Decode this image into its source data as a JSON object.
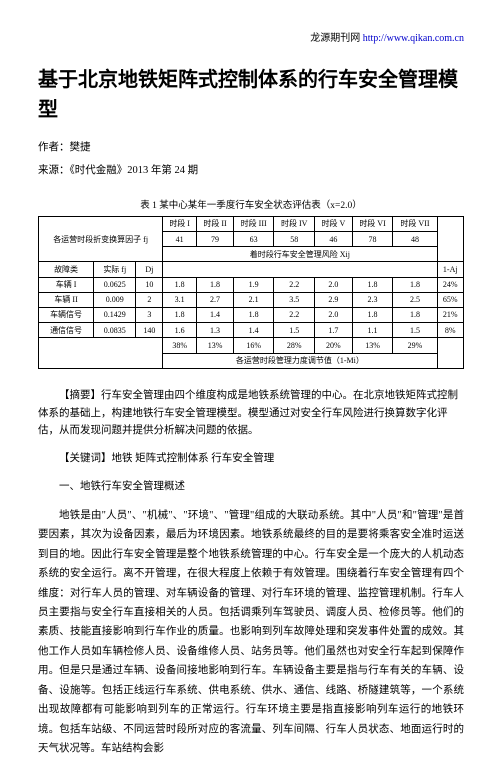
{
  "header": {
    "site_label": "龙源期刊网",
    "site_url_text": "http://www.qikan.com.cn"
  },
  "title": "基于北京地铁矩阵式控制体系的行车安全管理模型",
  "meta": {
    "author_prefix": "作者：",
    "author": "樊捷",
    "source_prefix": "来源：",
    "source": "《时代金融》2013 年第 24 期"
  },
  "table": {
    "caption": "表 1 某中心某年一季度行车安全状态评估表（x=2.0）",
    "top_header": "各运营时段折变换算因子 fj",
    "periods": [
      "时段 I",
      "时段 II",
      "时段 III",
      "时段 IV",
      "时段 V",
      "时段 VI",
      "时段 VII"
    ],
    "period_vals": [
      "41",
      "79",
      "63",
      "58",
      "46",
      "78",
      "48"
    ],
    "risk_header": "着时段行车安全管理风险 Xij",
    "last_col_header": "1-Aj",
    "cols": [
      "故障类",
      "实际 fj",
      "Dj"
    ],
    "rows": [
      {
        "label": "车辆 I",
        "f": "0.0625",
        "d": "10",
        "v": [
          "1.8",
          "1.8",
          "1.9",
          "2.2",
          "2.0",
          "1.8",
          "1.8"
        ],
        "last": "24%"
      },
      {
        "label": "车辆 II",
        "f": "0.009",
        "d": "2",
        "v": [
          "3.1",
          "2.7",
          "2.1",
          "3.5",
          "2.9",
          "2.3",
          "2.5"
        ],
        "last": "65%"
      },
      {
        "label": "车辆信号",
        "f": "0.1429",
        "d": "3",
        "v": [
          "1.8",
          "1.4",
          "1.8",
          "2.2",
          "2.0",
          "1.8",
          "1.8"
        ],
        "last": "21%"
      },
      {
        "label": "通信信号",
        "f": "0.0835",
        "d": "140",
        "v": [
          "1.6",
          "1.3",
          "1.4",
          "1.5",
          "1.7",
          "1.1",
          "1.5"
        ],
        "last": "8%"
      }
    ],
    "footer_row": [
      "38%",
      "13%",
      "16%",
      "28%",
      "20%",
      "13%",
      "29%"
    ],
    "footer_label": "各运营时段管理力度调节值（1-Mi）"
  },
  "abstract": {
    "label": "【摘要】",
    "text": "行车安全管理由四个维度构成是地铁系统管理的中心。在北京地铁矩阵式控制体系的基础上，构建地铁行车安全管理模型。模型通过对安全行车风险进行换算数字化评估，从而发现问题并提供分析解决问题的依据。"
  },
  "keywords": {
    "label": "【关键词】",
    "text": "地铁 矩阵式控制体系 行车安全管理"
  },
  "section": {
    "title": "一、地铁行车安全管理概述",
    "body": "地铁是由\"人员\"、\"机械\"、\"环境\"、\"管理\"组成的大联动系统。其中\"人员\"和\"管理\"是首要因素，其次为设备因素，最后为环境因素。地铁系统最终的目的是要将乘客安全准时运送到目的地。因此行车安全管理是整个地铁系统管理的中心。行车安全是一个庞大的人机动态系统的安全运行。离不开管理，在很大程度上依赖于有效管理。围绕着行车安全管理有四个维度：对行车人员的管理、对车辆设备的管理、对行车环境的管理、监控管理机制。行车人员主要指与安全行车直接相关的人员。包括调乘列车驾驶员、调度人员、检修员等。他们的素质、技能直接影响到行车作业的质量。也影响到列车故障处理和突发事件处置的成效。其他工作人员如车辆检修人员、设备维修人员、站务员等。他们虽然也对安全行车起到保障作用。但是只是通过车辆、设备间接地影响到行车。车辆设备主要是指与行车有关的车辆、设备、设施等。包括正线运行车系统、供电系统、供水、通信、线路、桥隧建筑等，一个系统出现故障都有可能影响到列车的正常运行。行车环境主要是指直接影响列车运行的地铁环境。包括车站级、不同运营时段所对应的客流量、列车间隔、行车人员状态、地面运行时的天气状况等。车站结构会影"
  }
}
